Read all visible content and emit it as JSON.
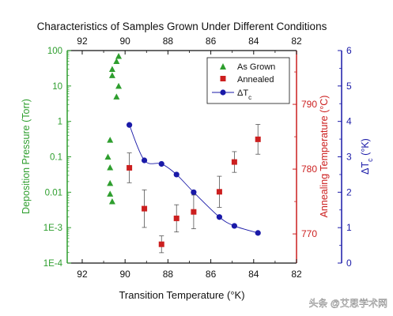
{
  "chart_data": {
    "type": "scatter",
    "title": "Characteristics of Samples Grown Under Different Conditions",
    "xlabel": "Transition Temperature (°K)",
    "x_reversed": true,
    "xlim": [
      92.7,
      82.0
    ],
    "x_ticks": [
      "92",
      "90",
      "88",
      "86",
      "84",
      "82"
    ],
    "x_top_ticks": [
      "92",
      "90",
      "88",
      "86",
      "84",
      "82"
    ],
    "y_left": {
      "label": "Deposition Pressure (Torr)",
      "scale": "log",
      "range": [
        0.0001,
        100
      ],
      "ticks": [
        "100",
        "10",
        "1",
        "0.1",
        "0.01",
        "1E-3",
        "1E-4"
      ],
      "color": "#2e9e2e"
    },
    "y_right1": {
      "label": "Annealing Temperature (°C)",
      "range": [
        765.5,
        798.3
      ],
      "ticks": [
        "770",
        "780",
        "790"
      ],
      "color": "#cc1f1f"
    },
    "y_right2": {
      "label_main": "ΔT",
      "label_sub": "c",
      "label_unit": " (°K)",
      "range": [
        0,
        6
      ],
      "ticks": [
        "0",
        "1",
        "2",
        "3",
        "4",
        "5",
        "6"
      ],
      "color": "#1a1aa8"
    },
    "legend": {
      "placement": "top-right",
      "items": [
        {
          "label": "As Grown",
          "marker": "triangle",
          "color": "#2e9e2e"
        },
        {
          "label": "Annealed",
          "marker": "square",
          "color": "#cc1f1f"
        },
        {
          "label_main": "ΔT",
          "label_sub": "c",
          "marker": "circle-line",
          "color": "#1a1aa8"
        }
      ]
    },
    "series": [
      {
        "id": "as-grown",
        "axis": "y_left",
        "points": [
          {
            "x": 90.3,
            "y": 70
          },
          {
            "x": 90.4,
            "y": 50
          },
          {
            "x": 90.6,
            "y": 30
          },
          {
            "x": 90.6,
            "y": 20
          },
          {
            "x": 90.3,
            "y": 10
          },
          {
            "x": 90.4,
            "y": 5
          },
          {
            "x": 90.7,
            "y": 0.3
          },
          {
            "x": 90.8,
            "y": 0.1
          },
          {
            "x": 90.7,
            "y": 0.05
          },
          {
            "x": 90.7,
            "y": 0.018
          },
          {
            "x": 90.7,
            "y": 0.009
          },
          {
            "x": 90.6,
            "y": 0.0055
          }
        ]
      },
      {
        "id": "annealed",
        "axis": "y_right1",
        "points": [
          {
            "x": 89.8,
            "y": 780.2,
            "err": 2.3
          },
          {
            "x": 89.1,
            "y": 773.9,
            "err": 2.9
          },
          {
            "x": 88.3,
            "y": 768.4,
            "err": 1.3
          },
          {
            "x": 87.6,
            "y": 772.4,
            "err": 2.1
          },
          {
            "x": 86.8,
            "y": 773.4,
            "err": 2.6
          },
          {
            "x": 85.6,
            "y": 776.5,
            "err": 2.4
          },
          {
            "x": 84.9,
            "y": 781.1,
            "err": 1.6
          },
          {
            "x": 83.8,
            "y": 784.6,
            "err": 2.3
          }
        ]
      },
      {
        "id": "delta-tc",
        "axis": "y_right2",
        "points": [
          {
            "x": 89.8,
            "y": 3.9
          },
          {
            "x": 89.1,
            "y": 2.9
          },
          {
            "x": 88.3,
            "y": 2.8
          },
          {
            "x": 87.6,
            "y": 2.5
          },
          {
            "x": 86.8,
            "y": 2.0
          },
          {
            "x": 85.6,
            "y": 1.3
          },
          {
            "x": 84.9,
            "y": 1.05
          },
          {
            "x": 83.8,
            "y": 0.85
          }
        ]
      }
    ]
  },
  "watermark": "头条 @艾思学术网"
}
